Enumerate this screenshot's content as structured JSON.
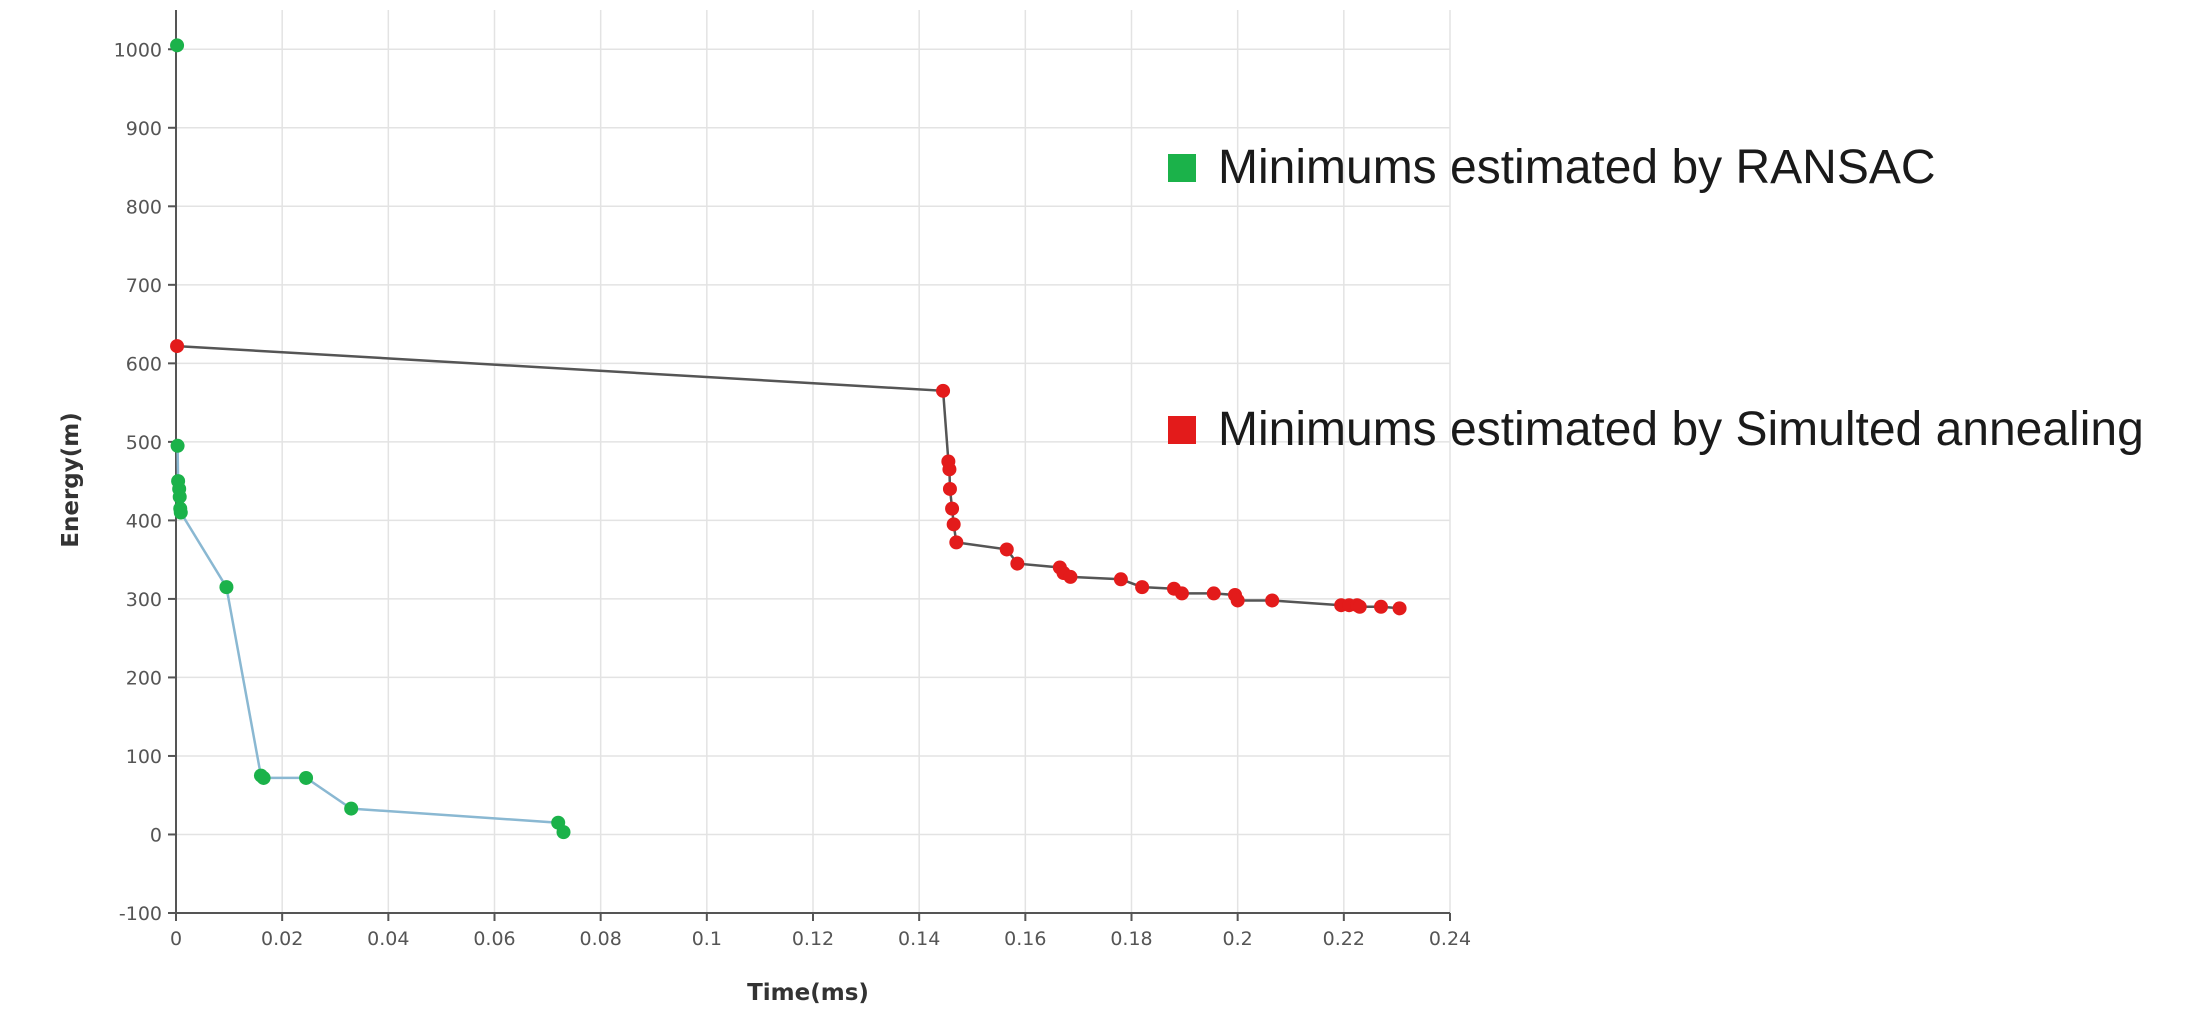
{
  "chart_data": {
    "type": "line",
    "xlabel": "Time(ms)",
    "ylabel": "Energy(m)",
    "xlim": [
      0,
      0.24
    ],
    "ylim": [
      -100,
      1050
    ],
    "x_ticks": [
      0,
      0.02,
      0.04,
      0.06,
      0.08,
      0.1,
      0.12,
      0.14,
      0.16,
      0.18,
      0.2,
      0.22,
      0.24
    ],
    "x_tick_labels": [
      "0",
      "0.02",
      "0.04",
      "0.06",
      "0.08",
      "0.1",
      "0.12",
      "0.14",
      "0.16",
      "0.18",
      "0.2",
      "0.22",
      "0.24"
    ],
    "y_ticks": [
      -100,
      0,
      100,
      200,
      300,
      400,
      500,
      600,
      700,
      800,
      900,
      1000
    ],
    "y_tick_labels": [
      "-100",
      "0",
      "100",
      "200",
      "300",
      "400",
      "500",
      "600",
      "700",
      "800",
      "900",
      "1000"
    ],
    "grid": true,
    "legend_position": "right",
    "series": [
      {
        "name": "Minimums estimated by RANSAC",
        "marker_color": "#1bb24a",
        "line_color": "#8ab8d2",
        "show_line_from_index": 1,
        "points": [
          [
            0.0002,
            1005
          ],
          [
            0.0003,
            495
          ],
          [
            0.0004,
            450
          ],
          [
            0.0006,
            440
          ],
          [
            0.0007,
            430
          ],
          [
            0.0008,
            415
          ],
          [
            0.0009,
            410
          ],
          [
            0.0095,
            315
          ],
          [
            0.016,
            75
          ],
          [
            0.0165,
            72
          ],
          [
            0.0245,
            72
          ],
          [
            0.033,
            33
          ],
          [
            0.072,
            15
          ],
          [
            0.073,
            3
          ]
        ]
      },
      {
        "name": "Minimums estimated by Simulted annealing",
        "marker_color": "#e31b1b",
        "line_color": "#555555",
        "show_line_from_index": 0,
        "points": [
          [
            0.0002,
            622
          ],
          [
            0.1445,
            565
          ],
          [
            0.1455,
            475
          ],
          [
            0.1457,
            465
          ],
          [
            0.1458,
            440
          ],
          [
            0.1462,
            415
          ],
          [
            0.1465,
            395
          ],
          [
            0.147,
            372
          ],
          [
            0.1565,
            363
          ],
          [
            0.1585,
            345
          ],
          [
            0.1665,
            340
          ],
          [
            0.1672,
            333
          ],
          [
            0.1685,
            328
          ],
          [
            0.178,
            325
          ],
          [
            0.182,
            315
          ],
          [
            0.188,
            313
          ],
          [
            0.1895,
            307
          ],
          [
            0.1955,
            307
          ],
          [
            0.1995,
            305
          ],
          [
            0.2,
            298
          ],
          [
            0.2065,
            298
          ],
          [
            0.2195,
            292
          ],
          [
            0.221,
            292
          ],
          [
            0.2225,
            292
          ],
          [
            0.223,
            290
          ],
          [
            0.227,
            290
          ],
          [
            0.2305,
            288
          ]
        ]
      }
    ]
  }
}
